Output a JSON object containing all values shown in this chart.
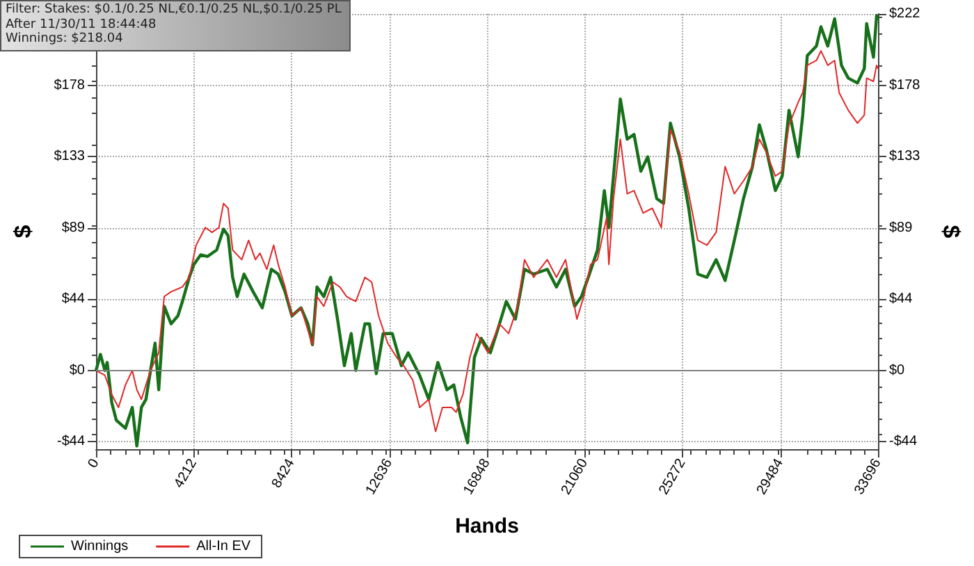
{
  "chart_data": {
    "type": "line",
    "xlabel": "Hands",
    "ylabel": "$",
    "y2label": "$",
    "annotations": [
      "Filter: Stakes: $0.1/0.25 NL,€0.1/0.25 NL,$0.1/0.25 PL",
      "After 11/30/11 18:44:48",
      "Winnings: $218.04"
    ],
    "xlim": [
      0,
      33696
    ],
    "xticks": [
      0,
      4212,
      8424,
      12636,
      16848,
      21060,
      25272,
      29484,
      33696
    ],
    "ylim": [
      -49,
      222
    ],
    "yticks": [
      {
        "value": -44.4,
        "label": "-$44"
      },
      {
        "value": 0,
        "label": "$0"
      },
      {
        "value": 44.4,
        "label": "$44"
      },
      {
        "value": 88.8,
        "label": "$89"
      },
      {
        "value": 133.2,
        "label": "$133"
      },
      {
        "value": 177.6,
        "label": "$178"
      },
      {
        "value": 222,
        "label": null
      }
    ],
    "y2lim": [
      -49,
      222
    ],
    "y2ticks": [
      {
        "value": -44.4,
        "label": "-$44"
      },
      {
        "value": 0,
        "label": "$0"
      },
      {
        "value": 44.4,
        "label": "$44"
      },
      {
        "value": 88.8,
        "label": "$89"
      },
      {
        "value": 133.2,
        "label": "$133"
      },
      {
        "value": 177.6,
        "label": "$178"
      },
      {
        "value": 222,
        "label": "$222"
      }
    ],
    "grid": true,
    "legend": "bottom left",
    "marker": "none",
    "line_style": "solid",
    "ref_lines": [
      {
        "axis": "y",
        "value": 0,
        "color": "#808080"
      }
    ],
    "series": [
      {
        "name": "Winnings",
        "color": "#17701a",
        "x": [
          0,
          189,
          383,
          482,
          678,
          875,
          1268,
          1562,
          1759,
          1956,
          2152,
          2349,
          2545,
          2703,
          2939,
          3233,
          3528,
          3724,
          4019,
          4216,
          4511,
          4806,
          5199,
          5494,
          5690,
          5887,
          6083,
          6378,
          6771,
          7164,
          7557,
          7852,
          8147,
          8441,
          8834,
          9129,
          9326,
          9522,
          9817,
          10112,
          10407,
          10702,
          10997,
          11193,
          11586,
          11783,
          12078,
          12373,
          12766,
          13159,
          13454,
          13945,
          14338,
          14731,
          15124,
          15419,
          15714,
          16009,
          16304,
          16599,
          16992,
          17385,
          17680,
          18073,
          18466,
          18856,
          19446,
          19840,
          20234,
          20624,
          20919,
          21214,
          21609,
          21904,
          22099,
          22299,
          22594,
          22888,
          23183,
          23478,
          23773,
          24162,
          24457,
          24752,
          25146,
          25541,
          25931,
          26325,
          26721,
          27110,
          27505,
          27900,
          28289,
          28584,
          28879,
          29274,
          29569,
          29863,
          30258,
          30453,
          30648,
          31043,
          31238,
          31532,
          31827,
          32122,
          32416,
          32811,
          33106,
          33206,
          33501,
          33636,
          33696
        ],
        "values": [
          0,
          10,
          0,
          5,
          -20,
          -31,
          -36,
          -23,
          -47,
          -23,
          -18,
          0,
          17,
          -12,
          40,
          29,
          34,
          43,
          58,
          66,
          72,
          71,
          75,
          88,
          84,
          58,
          46,
          60,
          49,
          39,
          63,
          60,
          49,
          34,
          39,
          29,
          16,
          52,
          46,
          58,
          32,
          3,
          23,
          0,
          29,
          29,
          -2,
          23,
          23,
          3,
          11,
          -3,
          -18,
          5,
          -12,
          -9,
          -29,
          -45,
          8,
          20,
          11,
          29,
          43,
          32,
          63,
          60,
          63,
          52,
          63,
          40,
          46,
          58,
          75,
          112,
          89,
          121,
          169,
          144,
          147,
          124,
          133,
          107,
          104,
          154,
          133,
          101,
          60,
          58,
          69,
          56,
          81,
          107,
          127,
          153,
          138,
          112,
          121,
          162,
          133,
          159,
          196,
          202,
          214,
          202,
          219,
          190,
          182,
          179,
          188,
          216,
          195,
          221,
          218
        ]
      },
      {
        "name": "All-In EV",
        "color": "#e02828",
        "x": [
          0,
          383,
          678,
          970,
          1268,
          1562,
          1759,
          1956,
          2349,
          2703,
          2939,
          3233,
          3724,
          4019,
          4314,
          4708,
          5002,
          5297,
          5494,
          5690,
          5887,
          6280,
          6575,
          6870,
          7066,
          7361,
          7656,
          7852,
          8147,
          8441,
          8834,
          9326,
          9522,
          9817,
          10210,
          10505,
          10800,
          11193,
          11586,
          11881,
          12176,
          12570,
          12963,
          13258,
          13651,
          13945,
          14338,
          14633,
          14928,
          15321,
          15517,
          15812,
          16107,
          16402,
          16894,
          17385,
          17779,
          18171,
          18466,
          18856,
          19446,
          19840,
          20234,
          20722,
          21017,
          21312,
          21609,
          22001,
          22099,
          22299,
          22594,
          22888,
          23183,
          23576,
          23970,
          24359,
          24752,
          25146,
          25541,
          25931,
          26325,
          26721,
          27110,
          27505,
          27900,
          28289,
          28584,
          28879,
          29274,
          29569,
          29863,
          30258,
          30453,
          30648,
          31043,
          31238,
          31532,
          31827,
          32022,
          32416,
          32811,
          33106,
          33206,
          33501,
          33636,
          33696
        ],
        "values": [
          0,
          -3,
          -15,
          -23,
          -9,
          0,
          -12,
          -18,
          0,
          11,
          46,
          49,
          52,
          58,
          78,
          89,
          86,
          89,
          104,
          101,
          75,
          69,
          81,
          69,
          73,
          63,
          78,
          66,
          52,
          34,
          39,
          16,
          46,
          40,
          55,
          52,
          46,
          43,
          58,
          55,
          34,
          17,
          8,
          3,
          -6,
          -23,
          -18,
          -38,
          -23,
          -23,
          -26,
          -15,
          8,
          23,
          11,
          29,
          23,
          40,
          69,
          58,
          69,
          58,
          69,
          32,
          46,
          66,
          69,
          95,
          66,
          107,
          144,
          110,
          112,
          98,
          101,
          89,
          150,
          136,
          110,
          81,
          78,
          86,
          127,
          110,
          118,
          127,
          144,
          136,
          121,
          124,
          153,
          167,
          173,
          190,
          193,
          199,
          190,
          193,
          173,
          162,
          154,
          159,
          182,
          180,
          190,
          188
        ]
      }
    ]
  }
}
